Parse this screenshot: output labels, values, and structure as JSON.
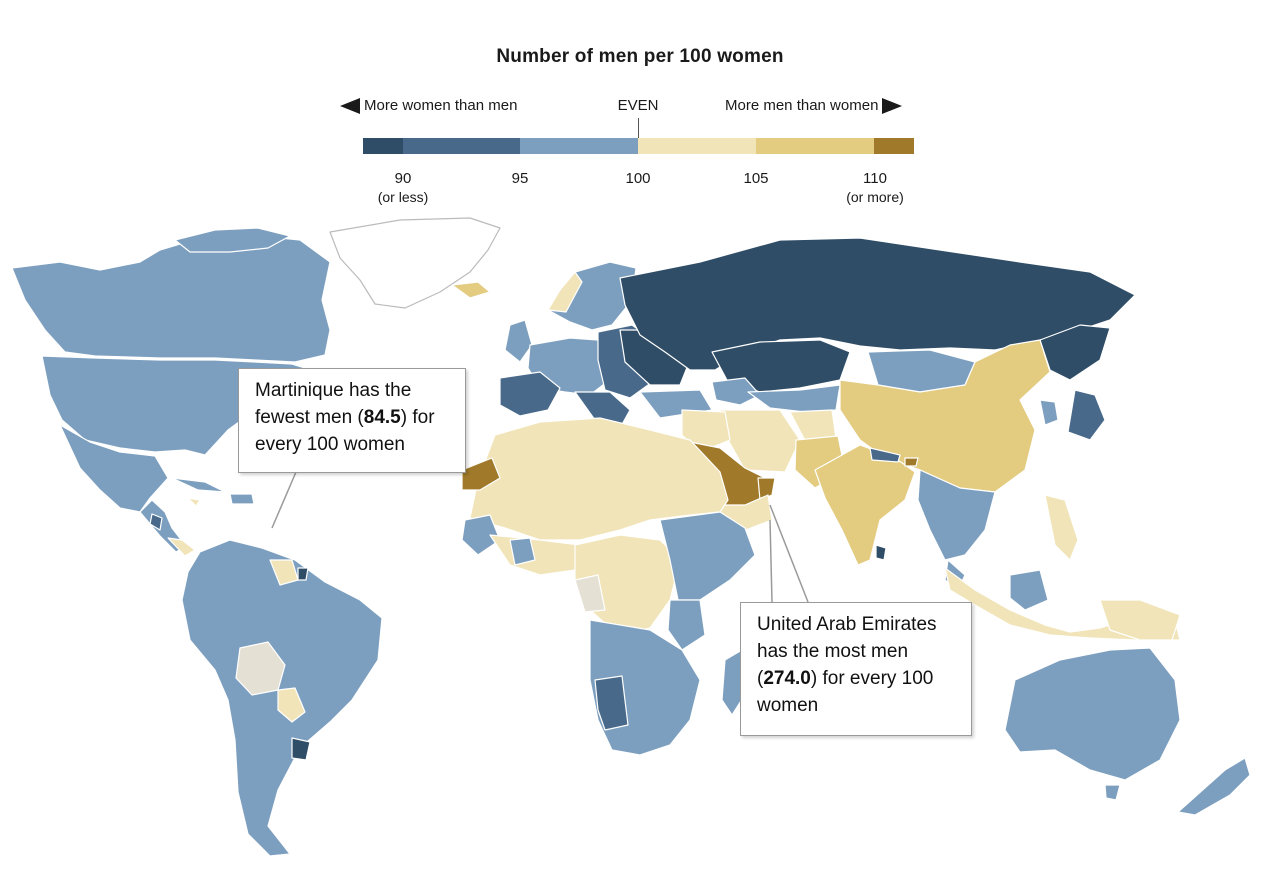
{
  "legend": {
    "title": "Number of men per 100 women",
    "left_label": "More women than men",
    "center_label": "EVEN",
    "right_label": "More men than women",
    "ticks": [
      {
        "value": "90",
        "sub": "(or less)"
      },
      {
        "value": "95",
        "sub": ""
      },
      {
        "value": "100",
        "sub": ""
      },
      {
        "value": "105",
        "sub": ""
      },
      {
        "value": "110",
        "sub": "(or more)"
      }
    ],
    "scale": [
      {
        "range": "90 or less",
        "color": "#2f4d66"
      },
      {
        "range": "90-95",
        "color": "#48698a"
      },
      {
        "range": "95-100",
        "color": "#7d9fbf"
      },
      {
        "range": "100-105",
        "color": "#f1e4b8"
      },
      {
        "range": "105-110",
        "color": "#e3cb80"
      },
      {
        "range": "110 or more",
        "color": "#a07a2a"
      }
    ]
  },
  "callouts": {
    "martinique": {
      "pre": "Martinique has the fewest men (",
      "value": "84.5",
      "post": ") for every 100 women"
    },
    "uae": {
      "pre": "United Arab Emirates has the most men (",
      "value": "274.0",
      "post": ") for every 100 women"
    }
  },
  "colors": {
    "dark_blue": "#2f4d66",
    "mid_blue": "#48698a",
    "light_blue": "#7d9fbf",
    "pale_yellow": "#f1e4b8",
    "mid_yellow": "#e3cb80",
    "dark_gold": "#a07a2a",
    "no_data": "#e4e0d4",
    "border": "#ffffff"
  }
}
